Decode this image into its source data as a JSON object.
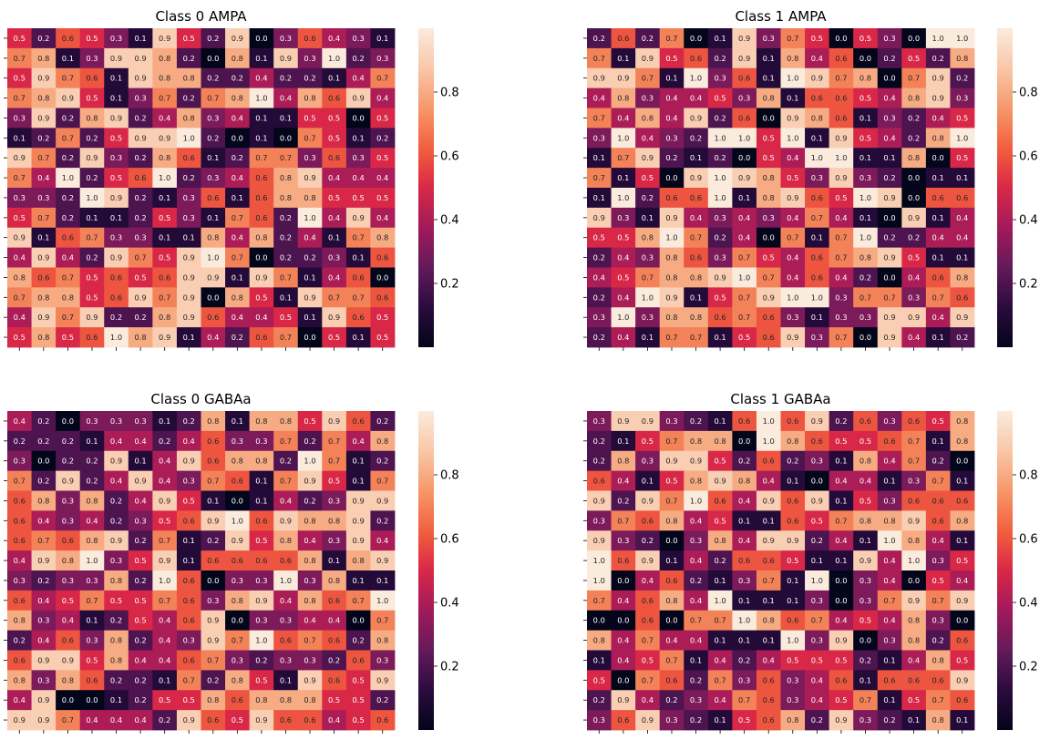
{
  "figure": {
    "colormap_stops": [
      "#03051a",
      "#2b0b3f",
      "#641a5a",
      "#a11a5b",
      "#d92847",
      "#f2603e",
      "#f6986b",
      "#f9c7a8",
      "#faebdd"
    ],
    "text_colors": {
      "light": "#ffffff",
      "dark": "#262626"
    }
  },
  "chart_data": [
    {
      "type": "heatmap",
      "title": "Class 0 AMPA",
      "colorbar": {
        "ticks": [
          0.2,
          0.4,
          0.6,
          0.8
        ],
        "tick_labels": [
          "0.2",
          "0.4",
          "0.6",
          "0.8"
        ],
        "vmin": 0.0,
        "vmax": 1.0
      },
      "values": [
        [
          0.5,
          0.2,
          0.6,
          0.5,
          0.3,
          0.1,
          0.9,
          0.5,
          0.2,
          0.9,
          0.0,
          0.3,
          0.6,
          0.4,
          0.3,
          0.1
        ],
        [
          0.7,
          0.8,
          0.1,
          0.3,
          0.9,
          0.9,
          0.8,
          0.2,
          0.0,
          0.8,
          0.1,
          0.9,
          0.3,
          1.0,
          0.2,
          0.3
        ],
        [
          0.5,
          0.9,
          0.7,
          0.6,
          0.1,
          0.9,
          0.8,
          0.8,
          0.2,
          0.2,
          0.4,
          0.2,
          0.2,
          0.1,
          0.4,
          0.7
        ],
        [
          0.7,
          0.8,
          0.9,
          0.5,
          0.1,
          0.3,
          0.7,
          0.2,
          0.7,
          0.8,
          1.0,
          0.4,
          0.8,
          0.6,
          0.9,
          0.4
        ],
        [
          0.3,
          0.9,
          0.2,
          0.8,
          0.9,
          0.2,
          0.4,
          0.8,
          0.3,
          0.4,
          0.1,
          0.1,
          0.5,
          0.5,
          0.0,
          0.5
        ],
        [
          0.1,
          0.2,
          0.7,
          0.2,
          0.5,
          0.9,
          0.9,
          1.0,
          0.2,
          0.0,
          0.1,
          0.0,
          0.7,
          0.5,
          0.1,
          0.2
        ],
        [
          0.9,
          0.7,
          0.2,
          0.9,
          0.3,
          0.2,
          0.8,
          0.6,
          0.1,
          0.2,
          0.7,
          0.7,
          0.3,
          0.6,
          0.3,
          0.5
        ],
        [
          0.7,
          0.4,
          1.0,
          0.2,
          0.5,
          0.6,
          1.0,
          0.2,
          0.3,
          0.4,
          0.6,
          0.8,
          0.9,
          0.4,
          0.4,
          0.4
        ],
        [
          0.3,
          0.3,
          0.2,
          1.0,
          0.9,
          0.2,
          0.1,
          0.3,
          0.6,
          0.1,
          0.6,
          0.8,
          0.8,
          0.5,
          0.5,
          0.5
        ],
        [
          0.5,
          0.7,
          0.2,
          0.1,
          0.1,
          0.2,
          0.5,
          0.3,
          0.1,
          0.7,
          0.6,
          0.2,
          1.0,
          0.4,
          0.9,
          0.4
        ],
        [
          0.9,
          0.1,
          0.6,
          0.7,
          0.3,
          0.3,
          0.1,
          0.1,
          0.8,
          0.4,
          0.8,
          0.2,
          0.4,
          0.1,
          0.7,
          0.8
        ],
        [
          0.4,
          0.9,
          0.4,
          0.2,
          0.9,
          0.7,
          0.5,
          0.9,
          1.0,
          0.7,
          0.0,
          0.2,
          0.2,
          0.3,
          0.1,
          0.6
        ],
        [
          0.8,
          0.6,
          0.7,
          0.5,
          0.6,
          0.5,
          0.6,
          0.9,
          0.9,
          0.1,
          0.9,
          0.7,
          0.1,
          0.4,
          0.6,
          0.0
        ],
        [
          0.7,
          0.8,
          0.8,
          0.5,
          0.6,
          0.9,
          0.7,
          0.9,
          0.0,
          0.8,
          0.5,
          0.1,
          0.9,
          0.7,
          0.7,
          0.6
        ],
        [
          0.4,
          0.9,
          0.7,
          0.9,
          0.2,
          0.2,
          0.8,
          0.9,
          0.6,
          0.4,
          0.4,
          0.5,
          0.1,
          0.9,
          0.6,
          0.5
        ],
        [
          0.5,
          0.8,
          0.5,
          0.6,
          1.0,
          0.8,
          0.9,
          0.1,
          0.4,
          0.2,
          0.6,
          0.7,
          0.0,
          0.5,
          0.1,
          0.5
        ]
      ]
    },
    {
      "type": "heatmap",
      "title": "Class 1 AMPA",
      "colorbar": {
        "ticks": [
          0.2,
          0.4,
          0.6,
          0.8
        ],
        "tick_labels": [
          "0.2",
          "0.4",
          "0.6",
          "0.8"
        ],
        "vmin": 0.0,
        "vmax": 1.0
      },
      "values": [
        [
          0.2,
          0.6,
          0.2,
          0.7,
          0.0,
          0.1,
          0.9,
          0.3,
          0.7,
          0.5,
          0.0,
          0.5,
          0.3,
          0.0,
          1.0,
          1.0
        ],
        [
          0.7,
          0.1,
          0.9,
          0.5,
          0.6,
          0.2,
          0.9,
          0.1,
          0.8,
          0.4,
          0.6,
          0.0,
          0.2,
          0.5,
          0.2,
          0.8
        ],
        [
          0.9,
          0.9,
          0.7,
          0.1,
          1.0,
          0.3,
          0.6,
          0.1,
          1.0,
          0.9,
          0.7,
          0.8,
          0.0,
          0.7,
          0.9,
          0.2
        ],
        [
          0.4,
          0.8,
          0.3,
          0.4,
          0.4,
          0.5,
          0.3,
          0.8,
          0.1,
          0.6,
          0.6,
          0.5,
          0.4,
          0.8,
          0.9,
          0.3
        ],
        [
          0.7,
          0.4,
          0.8,
          0.4,
          0.9,
          0.2,
          0.6,
          0.0,
          0.9,
          0.8,
          0.6,
          0.1,
          0.3,
          0.2,
          0.4,
          0.5
        ],
        [
          0.3,
          1.0,
          0.4,
          0.3,
          0.2,
          1.0,
          1.0,
          0.5,
          1.0,
          0.1,
          0.9,
          0.5,
          0.4,
          0.2,
          0.8,
          1.0
        ],
        [
          0.1,
          0.7,
          0.9,
          0.2,
          0.1,
          0.2,
          0.0,
          0.5,
          0.4,
          1.0,
          1.0,
          0.1,
          0.1,
          0.8,
          0.0,
          0.5
        ],
        [
          0.7,
          0.1,
          0.5,
          0.0,
          0.9,
          1.0,
          0.9,
          0.8,
          0.5,
          0.3,
          0.9,
          0.3,
          0.2,
          0.0,
          0.1,
          0.1
        ],
        [
          0.1,
          1.0,
          0.2,
          0.6,
          0.6,
          1.0,
          0.1,
          0.8,
          0.9,
          0.6,
          0.5,
          1.0,
          0.9,
          0.0,
          0.6,
          0.6
        ],
        [
          0.9,
          0.3,
          0.1,
          0.9,
          0.4,
          0.3,
          0.4,
          0.3,
          0.4,
          0.7,
          0.4,
          0.1,
          0.0,
          0.9,
          0.1,
          0.4
        ],
        [
          0.5,
          0.5,
          0.8,
          1.0,
          0.7,
          0.2,
          0.4,
          0.0,
          0.7,
          0.1,
          0.7,
          1.0,
          0.2,
          0.2,
          0.4,
          0.4
        ],
        [
          0.2,
          0.4,
          0.3,
          0.8,
          0.6,
          0.3,
          0.7,
          0.5,
          0.4,
          0.6,
          0.7,
          0.8,
          0.9,
          0.5,
          0.1,
          0.1
        ],
        [
          0.4,
          0.5,
          0.7,
          0.8,
          0.8,
          0.9,
          1.0,
          0.7,
          0.4,
          0.6,
          0.4,
          0.2,
          0.0,
          0.4,
          0.6,
          0.8
        ],
        [
          0.2,
          0.4,
          1.0,
          0.9,
          0.1,
          0.5,
          0.7,
          0.9,
          1.0,
          1.0,
          0.3,
          0.7,
          0.7,
          0.3,
          0.7,
          0.6
        ],
        [
          0.3,
          1.0,
          0.3,
          0.8,
          0.8,
          0.6,
          0.7,
          0.6,
          0.3,
          0.1,
          0.3,
          0.3,
          0.9,
          0.9,
          0.4,
          0.9
        ],
        [
          0.2,
          0.4,
          0.1,
          0.7,
          0.7,
          0.1,
          0.5,
          0.6,
          0.9,
          0.3,
          0.7,
          0.0,
          0.9,
          0.4,
          0.1,
          0.2
        ]
      ]
    },
    {
      "type": "heatmap",
      "title": "Class 0 GABAa",
      "colorbar": {
        "ticks": [
          0.2,
          0.4,
          0.6,
          0.8
        ],
        "tick_labels": [
          "0.2",
          "0.4",
          "0.6",
          "0.8"
        ],
        "vmin": 0.0,
        "vmax": 1.0
      },
      "values": [
        [
          0.4,
          0.2,
          0.0,
          0.3,
          0.3,
          0.3,
          0.1,
          0.2,
          0.8,
          0.1,
          0.8,
          0.8,
          0.5,
          0.9,
          0.6,
          0.2
        ],
        [
          0.2,
          0.2,
          0.2,
          0.1,
          0.4,
          0.4,
          0.2,
          0.4,
          0.6,
          0.3,
          0.3,
          0.7,
          0.2,
          0.7,
          0.4,
          0.8
        ],
        [
          0.3,
          0.0,
          0.2,
          0.2,
          0.9,
          0.1,
          0.4,
          0.9,
          0.6,
          0.8,
          0.8,
          0.2,
          1.0,
          0.7,
          0.1,
          0.2
        ],
        [
          0.7,
          0.2,
          0.9,
          0.2,
          0.4,
          0.9,
          0.4,
          0.3,
          0.7,
          0.6,
          0.1,
          0.7,
          0.9,
          0.5,
          0.1,
          0.7
        ],
        [
          0.6,
          0.8,
          0.3,
          0.8,
          0.2,
          0.4,
          0.9,
          0.5,
          0.1,
          0.0,
          0.1,
          0.4,
          0.2,
          0.3,
          0.9,
          0.9
        ],
        [
          0.6,
          0.4,
          0.3,
          0.4,
          0.2,
          0.3,
          0.5,
          0.6,
          0.9,
          1.0,
          0.6,
          0.9,
          0.8,
          0.8,
          0.9,
          0.2
        ],
        [
          0.6,
          0.7,
          0.6,
          0.8,
          0.9,
          0.2,
          0.7,
          0.1,
          0.2,
          0.9,
          0.5,
          0.8,
          0.4,
          0.3,
          0.9,
          0.4
        ],
        [
          0.4,
          0.9,
          0.8,
          1.0,
          0.3,
          0.5,
          0.9,
          0.1,
          0.6,
          0.6,
          0.6,
          0.6,
          0.8,
          0.1,
          0.8,
          0.9
        ],
        [
          0.3,
          0.2,
          0.3,
          0.3,
          0.8,
          0.2,
          1.0,
          0.6,
          0.0,
          0.3,
          0.3,
          1.0,
          0.3,
          0.8,
          0.1,
          0.1
        ],
        [
          0.6,
          0.4,
          0.5,
          0.7,
          0.5,
          0.5,
          0.7,
          0.6,
          0.3,
          0.8,
          0.9,
          0.4,
          0.8,
          0.6,
          0.7,
          1.0
        ],
        [
          0.8,
          0.3,
          0.4,
          0.1,
          0.2,
          0.5,
          0.4,
          0.6,
          0.9,
          0.0,
          0.3,
          0.3,
          0.4,
          0.4,
          0.0,
          0.7
        ],
        [
          0.2,
          0.4,
          0.6,
          0.3,
          0.8,
          0.2,
          0.4,
          0.3,
          0.9,
          0.7,
          1.0,
          0.6,
          0.7,
          0.6,
          0.2,
          0.8
        ],
        [
          0.6,
          0.9,
          0.9,
          0.5,
          0.8,
          0.4,
          0.4,
          0.6,
          0.7,
          0.3,
          0.2,
          0.3,
          0.3,
          0.2,
          0.6,
          0.3
        ],
        [
          0.8,
          0.3,
          0.8,
          0.6,
          0.2,
          0.2,
          0.1,
          0.7,
          0.2,
          0.8,
          0.5,
          0.1,
          0.9,
          0.6,
          0.5,
          0.9
        ],
        [
          0.4,
          0.9,
          0.0,
          0.0,
          0.1,
          0.2,
          0.5,
          0.5,
          0.8,
          0.6,
          0.8,
          0.8,
          0.8,
          0.5,
          0.5,
          0.2
        ],
        [
          0.9,
          0.9,
          0.7,
          0.4,
          0.4,
          0.4,
          0.2,
          0.9,
          0.6,
          0.5,
          0.9,
          0.6,
          0.6,
          0.4,
          0.5,
          0.6
        ]
      ]
    },
    {
      "type": "heatmap",
      "title": "Class 1 GABAa",
      "colorbar": {
        "ticks": [
          0.2,
          0.4,
          0.6,
          0.8
        ],
        "tick_labels": [
          "0.2",
          "0.4",
          "0.6",
          "0.8"
        ],
        "vmin": 0.0,
        "vmax": 1.0
      },
      "values": [
        [
          0.3,
          0.9,
          0.9,
          0.3,
          0.2,
          0.1,
          0.6,
          1.0,
          0.6,
          0.9,
          0.2,
          0.6,
          0.3,
          0.6,
          0.5,
          0.8
        ],
        [
          0.2,
          0.1,
          0.5,
          0.7,
          0.8,
          0.8,
          0.0,
          1.0,
          0.8,
          0.6,
          0.5,
          0.5,
          0.6,
          0.7,
          0.1,
          0.8
        ],
        [
          0.2,
          0.8,
          0.3,
          0.9,
          0.9,
          0.5,
          0.2,
          0.6,
          0.2,
          0.3,
          0.1,
          0.8,
          0.4,
          0.7,
          0.2,
          0.0
        ],
        [
          0.6,
          0.4,
          0.1,
          0.5,
          0.8,
          0.9,
          0.8,
          0.4,
          0.1,
          0.0,
          0.4,
          0.4,
          0.1,
          0.3,
          0.7,
          0.1
        ],
        [
          0.9,
          0.2,
          0.9,
          0.7,
          1.0,
          0.6,
          0.4,
          0.9,
          0.6,
          0.9,
          0.1,
          0.5,
          0.3,
          0.6,
          0.6,
          0.6
        ],
        [
          0.3,
          0.7,
          0.6,
          0.8,
          0.4,
          0.5,
          0.1,
          0.1,
          0.6,
          0.5,
          0.7,
          0.8,
          0.8,
          0.9,
          0.6,
          0.8
        ],
        [
          0.9,
          0.3,
          0.2,
          0.0,
          0.3,
          0.8,
          0.4,
          0.9,
          0.9,
          0.2,
          0.4,
          0.1,
          1.0,
          0.8,
          0.4,
          0.1
        ],
        [
          1.0,
          0.6,
          0.9,
          0.1,
          0.4,
          0.2,
          0.6,
          0.6,
          0.5,
          0.1,
          0.1,
          0.9,
          0.4,
          1.0,
          0.3,
          0.5
        ],
        [
          1.0,
          0.0,
          0.4,
          0.6,
          0.2,
          0.1,
          0.3,
          0.7,
          0.1,
          1.0,
          0.0,
          0.3,
          0.4,
          0.0,
          0.5,
          0.4
        ],
        [
          0.7,
          0.4,
          0.6,
          0.8,
          0.4,
          1.0,
          0.1,
          0.1,
          0.1,
          0.3,
          0.0,
          0.3,
          0.7,
          0.9,
          0.7,
          0.9
        ],
        [
          0.0,
          0.0,
          0.6,
          0.0,
          0.7,
          0.7,
          1.0,
          0.8,
          0.6,
          0.7,
          0.4,
          0.5,
          0.4,
          0.8,
          0.3,
          0.0
        ],
        [
          0.8,
          0.4,
          0.7,
          0.4,
          0.4,
          0.1,
          0.1,
          0.1,
          1.0,
          0.3,
          0.9,
          0.0,
          0.3,
          0.8,
          0.2,
          0.6
        ],
        [
          0.1,
          0.4,
          0.5,
          0.7,
          0.1,
          0.4,
          0.2,
          0.4,
          0.5,
          0.5,
          0.5,
          0.2,
          0.1,
          0.4,
          0.8,
          0.5
        ],
        [
          0.5,
          0.0,
          0.7,
          0.6,
          0.2,
          0.7,
          0.3,
          0.6,
          0.3,
          0.4,
          0.6,
          0.1,
          0.6,
          0.6,
          0.6,
          0.9
        ],
        [
          0.2,
          0.9,
          0.4,
          0.2,
          0.3,
          0.4,
          0.7,
          0.6,
          0.3,
          0.4,
          0.5,
          0.7,
          0.1,
          0.5,
          0.7,
          0.6
        ],
        [
          0.3,
          0.6,
          0.9,
          0.3,
          0.2,
          0.1,
          0.5,
          0.6,
          0.8,
          0.2,
          0.9,
          0.3,
          0.2,
          0.1,
          0.8,
          0.1
        ]
      ]
    }
  ]
}
